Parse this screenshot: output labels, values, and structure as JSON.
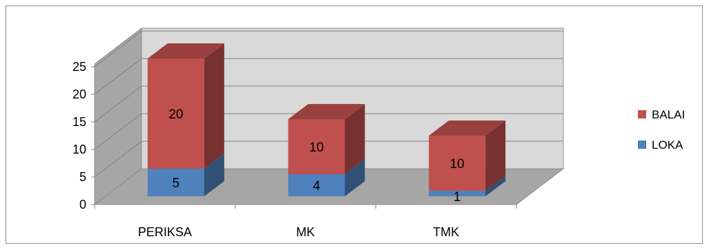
{
  "chart_data": {
    "type": "bar",
    "stacked": true,
    "three_d": true,
    "categories": [
      "PERIKSA",
      "MK",
      "TMK"
    ],
    "series": [
      {
        "name": "LOKA",
        "values": [
          5,
          4,
          1
        ],
        "color": "#4f81bd"
      },
      {
        "name": "BALAI",
        "values": [
          20,
          10,
          10
        ],
        "color": "#c0504d"
      }
    ],
    "ylim": [
      0,
      25
    ],
    "yticks": [
      "0",
      "5",
      "10",
      "15",
      "20",
      "25"
    ],
    "grid": true,
    "legend": "right",
    "colors": {
      "back_wall": "#d9d9d9",
      "side_wall": "#a6a6a6",
      "floor": "#a6a6a6",
      "grid": "#7f7f7f"
    }
  }
}
